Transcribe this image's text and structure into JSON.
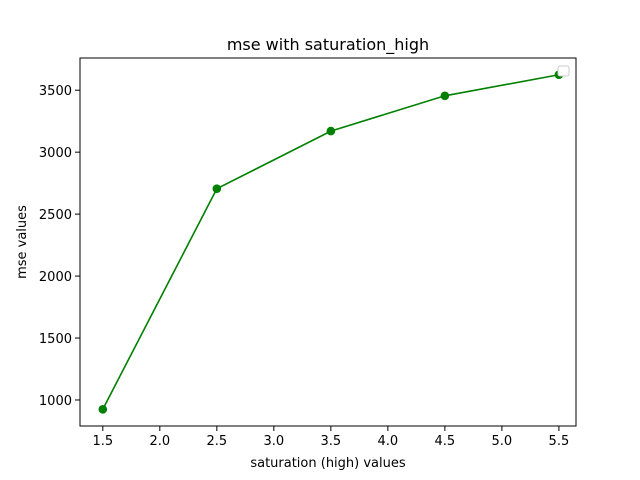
{
  "chart_data": {
    "type": "line",
    "title": "mse with saturation_high",
    "xlabel": "saturation (high) values",
    "ylabel": "mse values",
    "x": [
      1.5,
      2.5,
      3.5,
      4.5,
      5.5
    ],
    "series": [
      {
        "values": [
          925,
          2705,
          3170,
          3455,
          3625
        ],
        "color": "#008000",
        "marker": "circle"
      }
    ],
    "xlim": [
      1.3,
      5.65
    ],
    "ylim": [
      790,
      3760
    ],
    "xticks": [
      "1.5",
      "2.0",
      "2.5",
      "3.0",
      "3.5",
      "4.0",
      "4.5",
      "5.0",
      "5.5"
    ],
    "yticks": [
      "1000",
      "1500",
      "2000",
      "2500",
      "3000",
      "3500"
    ],
    "grid": false,
    "legend": {
      "position": "top-right",
      "entries": []
    }
  }
}
